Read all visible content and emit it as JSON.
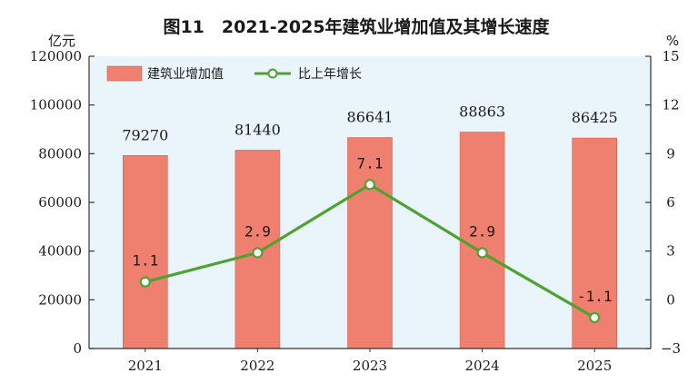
{
  "chart_data": {
    "type": "bar",
    "title": "图11　2021-2025年建筑业增加值及其增长速度",
    "left_unit": "亿元",
    "right_unit": "%",
    "categories": [
      "2021",
      "2022",
      "2023",
      "2024",
      "2025"
    ],
    "series": [
      {
        "name": "建筑业增加值",
        "type": "bar",
        "axis": "left",
        "values": [
          79270,
          81440,
          86641,
          88863,
          86425
        ],
        "labels": [
          "79270",
          "81440",
          "86641",
          "88863",
          "86425"
        ],
        "color": "#ef8070"
      },
      {
        "name": "比上年增长",
        "type": "line",
        "axis": "right",
        "values": [
          1.1,
          2.9,
          7.1,
          2.9,
          -1.1
        ],
        "labels": [
          "1.1",
          "2.9",
          "7.1",
          "2.9",
          "-1.1"
        ],
        "color": "#4ea22f"
      }
    ],
    "y_left": {
      "min": 0,
      "max": 120000,
      "ticks": [
        0,
        20000,
        40000,
        60000,
        80000,
        100000,
        120000
      ],
      "tick_labels": [
        "0",
        "20000",
        "40000",
        "60000",
        "80000",
        "100000",
        "120000"
      ]
    },
    "y_right": {
      "min": -3,
      "max": 15,
      "ticks": [
        -3,
        0,
        3,
        6,
        9,
        12,
        15
      ],
      "tick_labels": [
        "−3",
        "0",
        "3",
        "6",
        "9",
        "12",
        "15"
      ]
    },
    "grid": false,
    "legend_position": "top-left",
    "colors": {
      "plot_background": "#e9f4fb",
      "bar": "#ef8070",
      "bar_edge": "#d9604f",
      "line": "#4ea22f",
      "marker_fill": "#ffffff",
      "axis": "#333333"
    }
  }
}
